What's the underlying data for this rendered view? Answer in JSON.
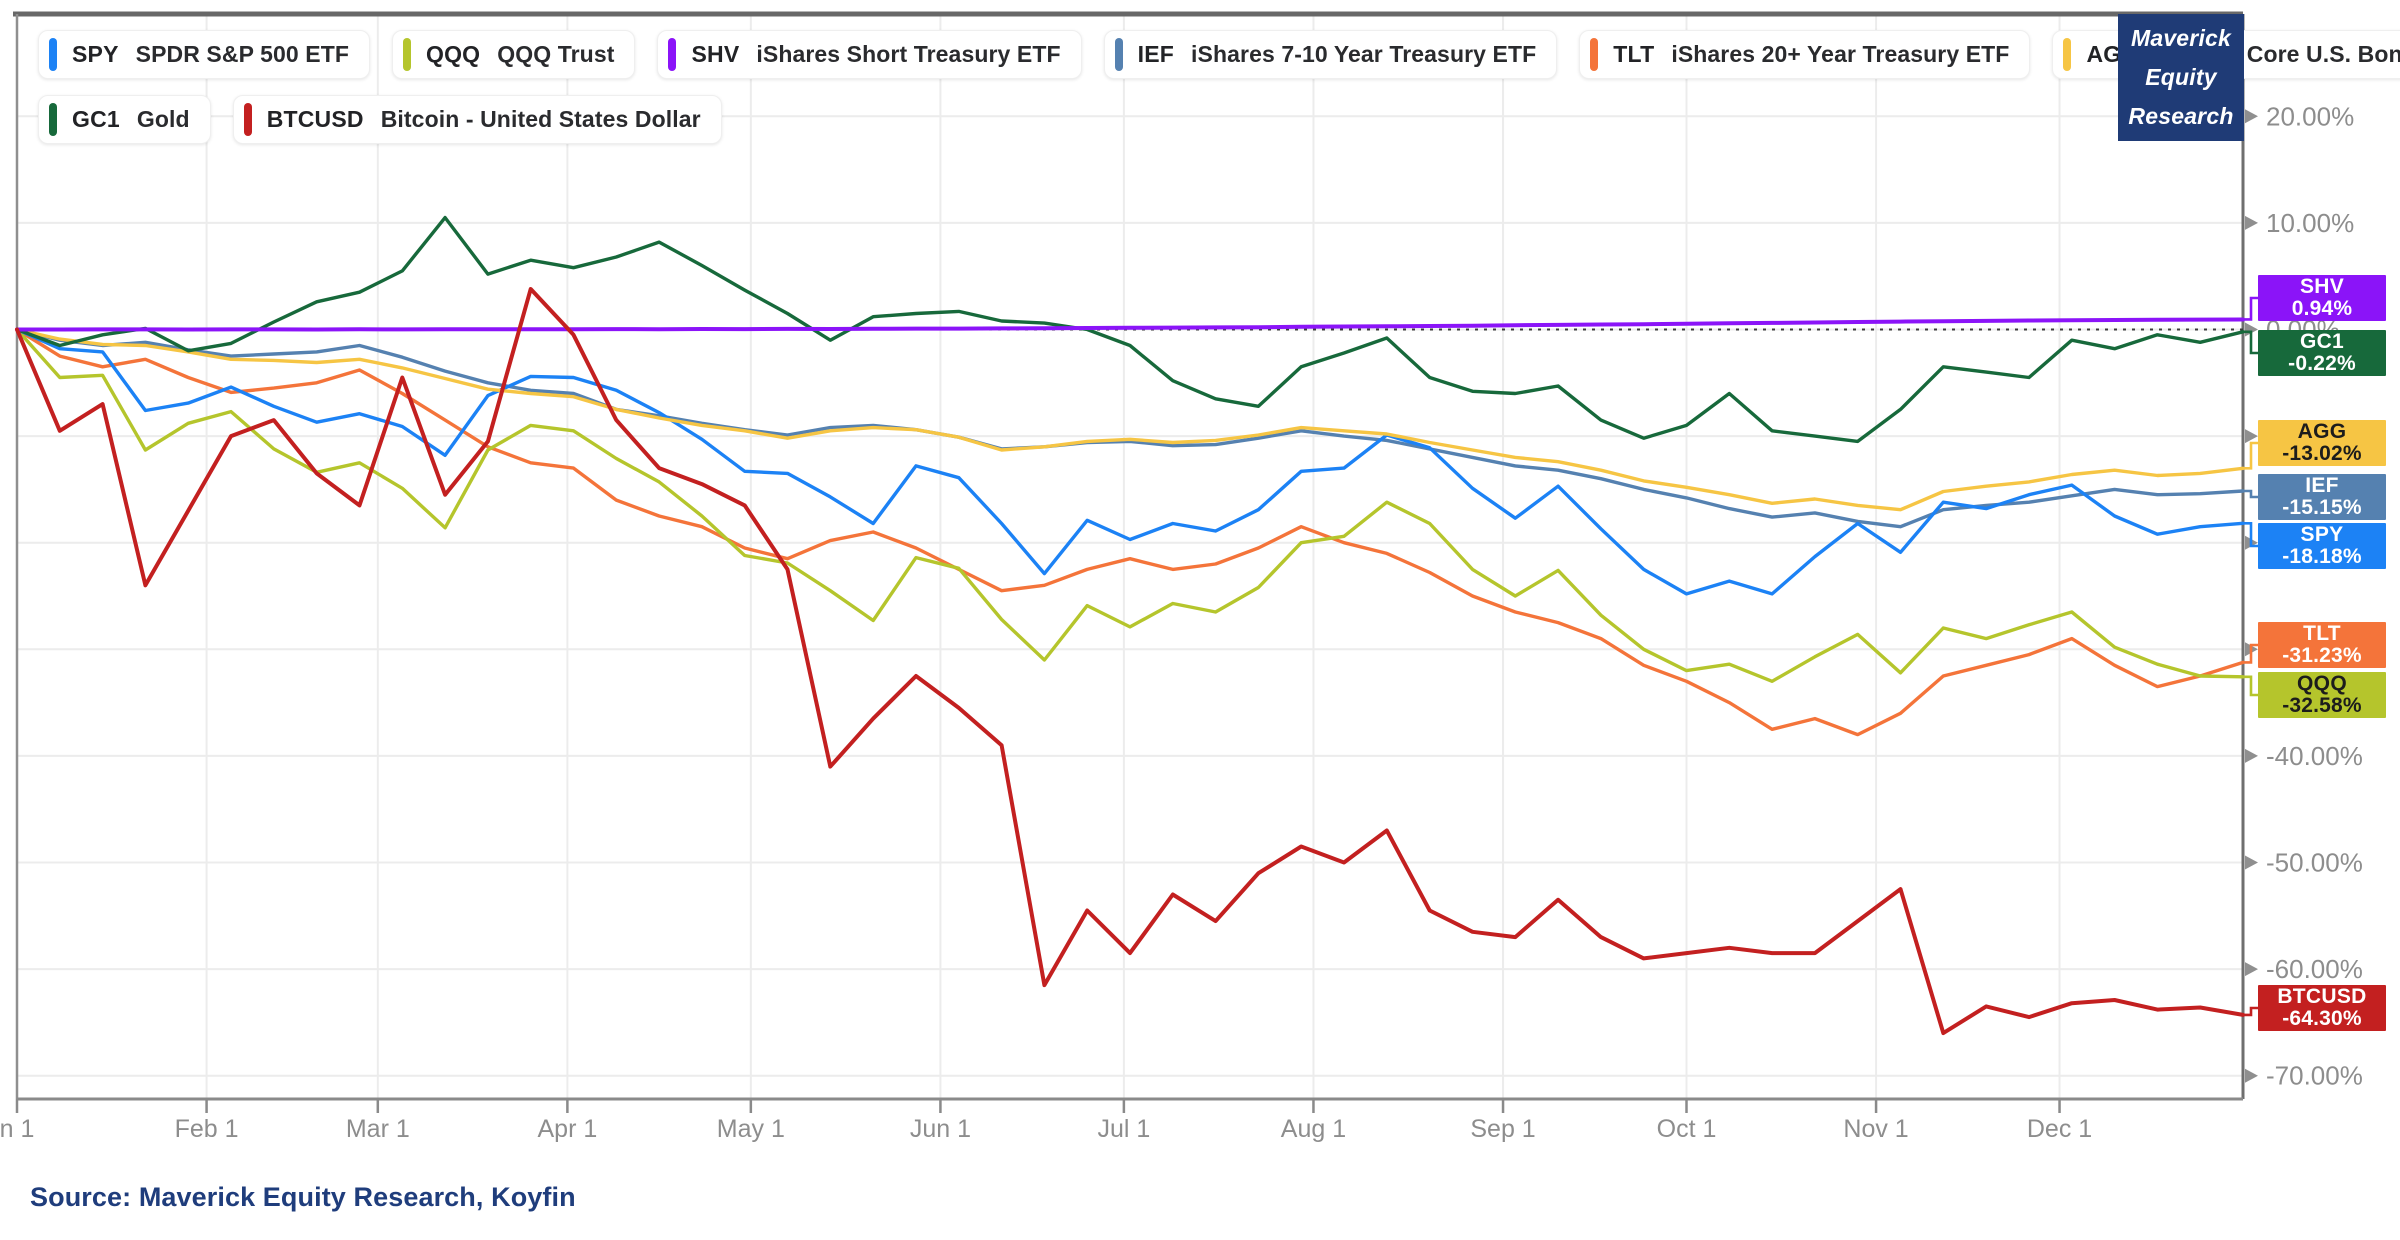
{
  "logo": {
    "lines": [
      "Maverick",
      "Equity",
      "Research"
    ],
    "bg_color": "#1f3b76",
    "text_color": "#ffffff"
  },
  "source_note": "Source: Maverick Equity Research, Koyfin",
  "colors": {
    "grid": "#ececec",
    "axis_text": "#8d8d8d",
    "border_top": "#686868",
    "border_side": "#8f8f8f",
    "zero_line": "#3a3a3a",
    "source_text": "#1f3d7c"
  },
  "y_axis": {
    "tick_values": [
      20,
      10,
      0,
      -10,
      -20,
      -30,
      -40,
      -50,
      -60,
      -70
    ],
    "tick_labels": [
      "20.00%",
      "10.00%",
      "0.00%",
      "-10.00%",
      "-20.00%",
      "-30.00%",
      "-40.00%",
      "-50.00%",
      "-60.00%",
      "-70.00%"
    ]
  },
  "x_axis": {
    "labels": [
      "n 1",
      "Feb 1",
      "Mar 1",
      "Apr 1",
      "May 1",
      "Jun 1",
      "Jul 1",
      "Aug 1",
      "Sep 1",
      "Oct 1",
      "Nov 1",
      "Dec 1"
    ],
    "day_offsets": [
      0,
      31,
      59,
      90,
      120,
      151,
      181,
      212,
      243,
      273,
      304,
      334
    ]
  },
  "chart_data": {
    "type": "line",
    "title": "",
    "x_unit": "day_of_year_2022",
    "ylim": [
      -72.5,
      29.5
    ],
    "grid": true,
    "legend_position": "top-left",
    "zero_reference_line": true,
    "x": [
      0,
      7,
      14,
      21,
      28,
      35,
      42,
      49,
      56,
      63,
      70,
      77,
      84,
      91,
      98,
      105,
      112,
      119,
      126,
      133,
      140,
      147,
      154,
      161,
      168,
      175,
      182,
      189,
      196,
      203,
      210,
      217,
      224,
      231,
      238,
      245,
      252,
      259,
      266,
      273,
      280,
      287,
      294,
      301,
      308,
      315,
      322,
      329,
      336,
      343,
      350,
      357,
      364
    ],
    "series": [
      {
        "ticker": "SPY",
        "name": "SPDR S&P 500 ETF",
        "color": "#1c82f5",
        "final_label": "-18.18%",
        "badge_text_color": "#ffffff",
        "legend_row": 1,
        "values": [
          0,
          -1.8,
          -2.1,
          -7.6,
          -6.9,
          -5.4,
          -7.2,
          -8.7,
          -7.9,
          -9.1,
          -11.8,
          -6.2,
          -4.4,
          -4.5,
          -5.7,
          -7.8,
          -10.3,
          -13.3,
          -13.5,
          -15.7,
          -18.2,
          -12.8,
          -13.9,
          -18.2,
          -22.9,
          -17.9,
          -19.7,
          -18.2,
          -18.9,
          -16.9,
          -13.3,
          -13.0,
          -9.9,
          -11.1,
          -14.9,
          -17.7,
          -14.7,
          -18.7,
          -22.5,
          -24.8,
          -23.6,
          -24.8,
          -21.3,
          -18.2,
          -20.9,
          -16.2,
          -16.8,
          -15.5,
          -14.6,
          -17.5,
          -19.2,
          -18.5,
          -18.18
        ]
      },
      {
        "ticker": "QQQ",
        "name": "QQQ Trust",
        "color": "#b5c52c",
        "final_label": "-32.58%",
        "badge_text_color": "#1c1c1c",
        "legend_row": 1,
        "values": [
          0,
          -4.5,
          -4.3,
          -11.3,
          -8.8,
          -7.7,
          -11.2,
          -13.4,
          -12.5,
          -14.9,
          -18.6,
          -11.3,
          -9.0,
          -9.5,
          -12.1,
          -14.3,
          -17.5,
          -21.2,
          -21.9,
          -24.5,
          -27.3,
          -21.4,
          -22.4,
          -27.2,
          -31.0,
          -25.9,
          -27.9,
          -25.7,
          -26.5,
          -24.2,
          -20.0,
          -19.4,
          -16.2,
          -18.2,
          -22.5,
          -25.0,
          -22.6,
          -26.8,
          -30.0,
          -32.0,
          -31.4,
          -33.0,
          -30.7,
          -28.6,
          -32.2,
          -28.0,
          -29.0,
          -27.7,
          -26.5,
          -29.8,
          -31.4,
          -32.5,
          -32.58
        ]
      },
      {
        "ticker": "SHV",
        "name": "iShares Short Treasury ETF",
        "color": "#8b14f8",
        "final_label": "0.94%",
        "badge_text_color": "#ffffff",
        "legend_row": 1,
        "values": [
          0,
          0,
          0.01,
          0.01,
          0,
          0.01,
          0.01,
          0,
          0.02,
          0.01,
          0.02,
          0.03,
          0.02,
          0.03,
          0.04,
          0.03,
          0.05,
          0.04,
          0.06,
          0.05,
          0.07,
          0.08,
          0.08,
          0.1,
          0.12,
          0.14,
          0.16,
          0.18,
          0.2,
          0.22,
          0.25,
          0.28,
          0.3,
          0.33,
          0.36,
          0.4,
          0.43,
          0.47,
          0.5,
          0.54,
          0.58,
          0.62,
          0.66,
          0.7,
          0.74,
          0.78,
          0.81,
          0.84,
          0.87,
          0.89,
          0.91,
          0.93,
          0.94
        ]
      },
      {
        "ticker": "IEF",
        "name": "iShares 7-10 Year Treasury ETF",
        "color": "#5581b0",
        "final_label": "-15.15%",
        "badge_text_color": "#ffffff",
        "legend_row": 1,
        "values": [
          0,
          -1.0,
          -1.5,
          -1.2,
          -1.9,
          -2.5,
          -2.3,
          -2.1,
          -1.5,
          -2.6,
          -3.9,
          -5.0,
          -5.7,
          -6.0,
          -7.5,
          -8.1,
          -8.8,
          -9.4,
          -9.9,
          -9.2,
          -9.0,
          -9.4,
          -10.1,
          -11.2,
          -11.0,
          -10.6,
          -10.5,
          -10.9,
          -10.8,
          -10.2,
          -9.5,
          -10.0,
          -10.4,
          -11.2,
          -12.0,
          -12.8,
          -13.2,
          -14.0,
          -15.0,
          -15.8,
          -16.8,
          -17.6,
          -17.2,
          -18.0,
          -18.5,
          -16.9,
          -16.5,
          -16.2,
          -15.6,
          -15.0,
          -15.5,
          -15.4,
          -15.15
        ]
      },
      {
        "ticker": "TLT",
        "name": "iShares 20+ Year Treasury ETF",
        "color": "#f4743a",
        "final_label": "-31.23%",
        "badge_text_color": "#ffffff",
        "legend_row": 1,
        "values": [
          0,
          -2.5,
          -3.5,
          -2.8,
          -4.5,
          -5.9,
          -5.5,
          -5.0,
          -3.8,
          -6.0,
          -8.5,
          -11.0,
          -12.5,
          -13.0,
          -16.0,
          -17.5,
          -18.5,
          -20.5,
          -21.5,
          -19.8,
          -19.0,
          -20.5,
          -22.5,
          -24.5,
          -24.0,
          -22.5,
          -21.5,
          -22.5,
          -22.0,
          -20.5,
          -18.5,
          -20.0,
          -21.0,
          -22.8,
          -25.0,
          -26.5,
          -27.5,
          -29.0,
          -31.5,
          -33.0,
          -35.0,
          -37.5,
          -36.5,
          -38.0,
          -36.0,
          -32.5,
          -31.5,
          -30.5,
          -29.0,
          -31.5,
          -33.5,
          -32.5,
          -31.23
        ]
      },
      {
        "ticker": "AGG",
        "name": "iShares Core U.S. Bond ETF",
        "color": "#f6c544",
        "final_label": "-13.02%",
        "badge_text_color": "#1c1c1c",
        "legend_row": 1,
        "values": [
          0,
          -0.9,
          -1.4,
          -1.5,
          -2.1,
          -2.8,
          -2.9,
          -3.1,
          -2.8,
          -3.6,
          -4.6,
          -5.6,
          -6.0,
          -6.3,
          -7.5,
          -8.3,
          -9.0,
          -9.5,
          -10.2,
          -9.5,
          -9.2,
          -9.4,
          -10.1,
          -11.3,
          -11.0,
          -10.5,
          -10.3,
          -10.6,
          -10.4,
          -9.9,
          -9.2,
          -9.5,
          -9.8,
          -10.6,
          -11.3,
          -12.0,
          -12.4,
          -13.2,
          -14.2,
          -14.8,
          -15.5,
          -16.3,
          -15.9,
          -16.5,
          -16.9,
          -15.2,
          -14.7,
          -14.3,
          -13.6,
          -13.2,
          -13.7,
          -13.5,
          -13.02
        ]
      },
      {
        "ticker": "GC1",
        "name": "Gold",
        "color": "#17693b",
        "final_label": "-0.22%",
        "badge_text_color": "#ffffff",
        "legend_row": 2,
        "values": [
          0,
          -1.5,
          -0.5,
          0.1,
          -2.0,
          -1.3,
          0.7,
          2.6,
          3.5,
          5.5,
          10.5,
          5.2,
          6.5,
          5.8,
          6.8,
          8.2,
          6.0,
          3.7,
          1.5,
          -1.0,
          1.2,
          1.5,
          1.7,
          0.8,
          0.6,
          0.0,
          -1.5,
          -4.8,
          -6.5,
          -7.2,
          -3.5,
          -2.2,
          -0.8,
          -4.5,
          -5.8,
          -6.0,
          -5.3,
          -8.5,
          -10.2,
          -9.0,
          -6.0,
          -9.5,
          -10.0,
          -10.5,
          -7.5,
          -3.5,
          -4.0,
          -4.5,
          -1.0,
          -1.8,
          -0.5,
          -1.2,
          -0.22
        ]
      },
      {
        "ticker": "BTCUSD",
        "name": "Bitcoin - United States Dollar",
        "color": "#c32020",
        "final_label": "-64.30%",
        "badge_text_color": "#ffffff",
        "legend_row": 2,
        "values": [
          0,
          -9.5,
          -7.0,
          -24.0,
          -17.0,
          -10.0,
          -8.5,
          -13.5,
          -16.5,
          -4.5,
          -15.5,
          -10.5,
          3.8,
          -0.5,
          -8.5,
          -13.0,
          -14.5,
          -16.5,
          -22.5,
          -41.0,
          -36.5,
          -32.5,
          -35.5,
          -39.0,
          -61.5,
          -54.5,
          -58.5,
          -53.0,
          -55.5,
          -51.0,
          -48.5,
          -50.0,
          -47.0,
          -54.5,
          -56.5,
          -57.0,
          -53.5,
          -57.0,
          -59.0,
          -58.5,
          -58.0,
          -58.5,
          -58.5,
          -55.5,
          -52.5,
          -66.0,
          -63.5,
          -64.5,
          -63.2,
          -62.9,
          -63.8,
          -63.6,
          -64.3
        ]
      }
    ]
  }
}
